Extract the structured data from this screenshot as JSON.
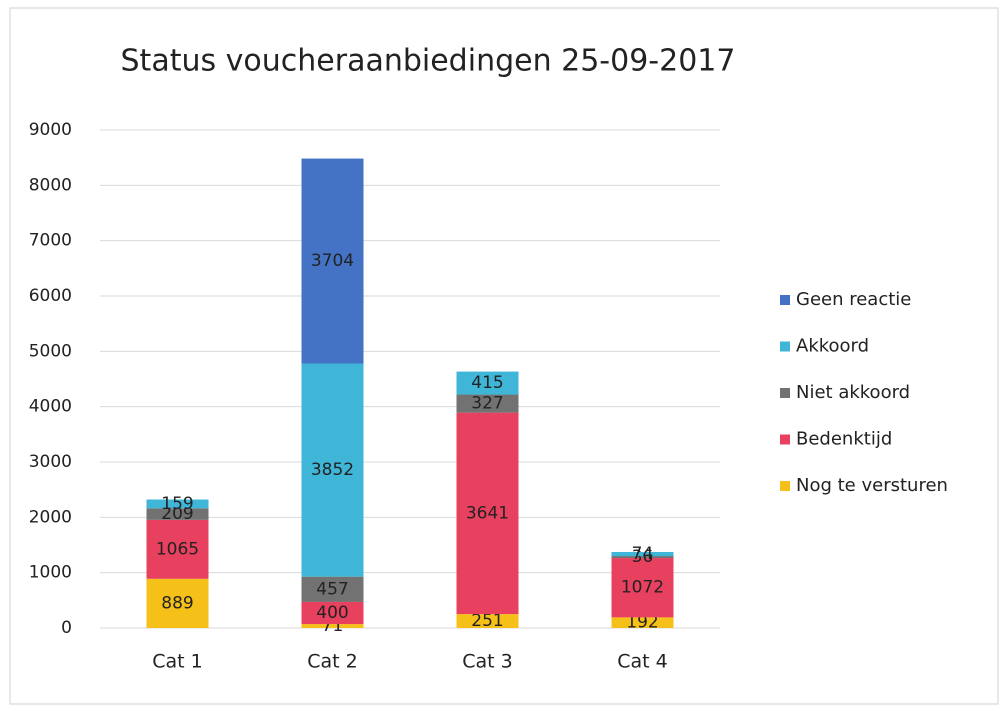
{
  "chart_data": {
    "type": "stacked_bar",
    "title": "Status voucheraanbiedingen 25-09-2017",
    "categories": [
      "Cat 1",
      "Cat 2",
      "Cat 3",
      "Cat 4"
    ],
    "series": [
      {
        "name": "Nog te versturen",
        "color": "#f5c018",
        "values": [
          889,
          71,
          251,
          192
        ]
      },
      {
        "name": "Bedenktijd",
        "color": "#e8405f",
        "values": [
          1065,
          400,
          3641,
          1072
        ]
      },
      {
        "name": "Niet akkoord",
        "color": "#727272",
        "values": [
          209,
          457,
          327,
          36
        ]
      },
      {
        "name": "Akkoord",
        "color": "#3fb6d8",
        "values": [
          159,
          3852,
          415,
          74
        ]
      },
      {
        "name": "Geen reactie",
        "color": "#4472c4",
        "values": [
          null,
          3704,
          null,
          null
        ]
      }
    ],
    "ylim": [
      0,
      9000
    ],
    "yticks": [
      0,
      1000,
      2000,
      3000,
      4000,
      5000,
      6000,
      7000,
      8000,
      9000
    ],
    "grid": true,
    "legend": "right"
  }
}
